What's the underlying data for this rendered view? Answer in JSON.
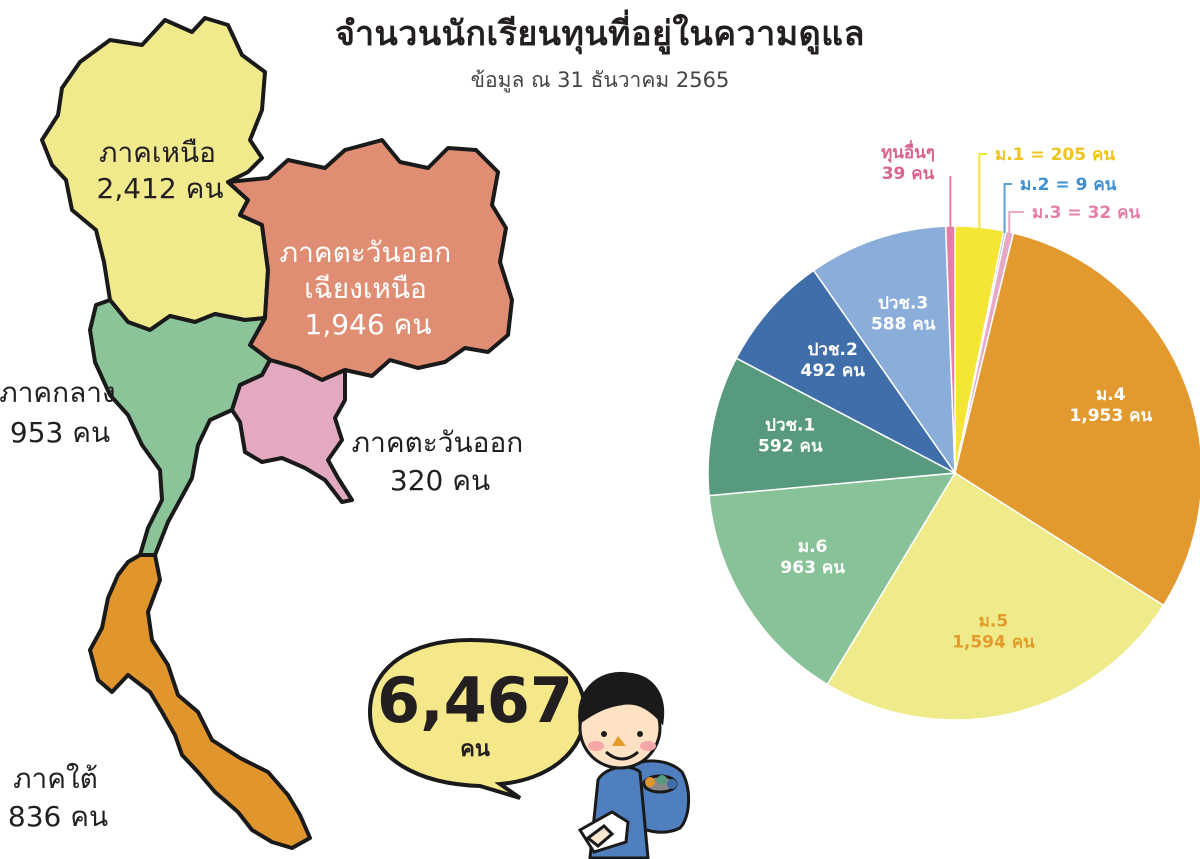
{
  "title": "จำนวนนักเรียนทุนที่อยู่ในความดูแล",
  "subtitle": "ข้อมูล ณ 31 ธันวาคม 2565",
  "unit": "คน",
  "total": "6,467",
  "regions": [
    {
      "name": "ภาคเหนือ",
      "count": "2,412",
      "color": "#f0ea8c"
    },
    {
      "name": "ภาคตะวันออกเฉียงเหนือ",
      "count": "1,946",
      "color": "#df8e73"
    },
    {
      "name": "ภาคกลาง",
      "count": "953",
      "color": "#8cc49a"
    },
    {
      "name": "ภาคตะวันออก",
      "count": "320",
      "color": "#e2a9c1"
    },
    {
      "name": "ภาคใต้",
      "count": "836",
      "color": "#e0962c"
    }
  ],
  "region_label_lines": {
    "north": [
      "ภาคเหนือ",
      "2,412 คน"
    ],
    "northeast": [
      "ภาคตะวันออก",
      "เฉียงเหนือ",
      "1,946 คน"
    ],
    "central": [
      "ภาคกลาง",
      "953 คน"
    ],
    "east": [
      "ภาคตะวันออก",
      "320 คน"
    ],
    "south": [
      "ภาคใต้",
      "836 คน"
    ]
  },
  "chart_data": {
    "type": "pie",
    "title": "",
    "slices": [
      {
        "label": "ม.1",
        "value": 205,
        "color": "#f5e636",
        "text_color": "#f0c419",
        "lines": [
          "ม.1 = 205 คน"
        ]
      },
      {
        "label": "ม.2",
        "value": 9,
        "color": "#5aa0d8",
        "text_color": "#3d8fd1",
        "lines": [
          "ม.2 = 9 คน"
        ]
      },
      {
        "label": "ม.3",
        "value": 32,
        "color": "#e6a8c3",
        "text_color": "#e37ea9",
        "lines": [
          "ม.3 = 32 คน"
        ]
      },
      {
        "label": "ม.4",
        "value": 1953,
        "color": "#e2992e",
        "text_color": "#ffffff",
        "lines": [
          "ม.4",
          "1,953 คน"
        ]
      },
      {
        "label": "ม.5",
        "value": 1594,
        "color": "#efeb8a",
        "text_color": "#e39b2a",
        "lines": [
          "ม.5",
          "1,594 คน"
        ]
      },
      {
        "label": "ม.6",
        "value": 963,
        "color": "#88c299",
        "text_color": "#ffffff",
        "lines": [
          "ม.6",
          "963 คน"
        ]
      },
      {
        "label": "ปวช.1",
        "value": 592,
        "color": "#579a7e",
        "text_color": "#ffffff",
        "lines": [
          "ปวช.1",
          "592 คน"
        ]
      },
      {
        "label": "ปวช.2",
        "value": 492,
        "color": "#3f6eaa",
        "text_color": "#ffffff",
        "lines": [
          "ปวช.2",
          "492 คน"
        ]
      },
      {
        "label": "ปวช.3",
        "value": 588,
        "color": "#8aaed9",
        "text_color": "#ffffff",
        "lines": [
          "ปวช.3",
          "588 คน"
        ]
      },
      {
        "label": "ทุนอื่นๆ",
        "value": 39,
        "color": "#e37ea9",
        "text_color": "#d9638f",
        "lines": [
          "ทุนอื่นๆ",
          "39 คน"
        ]
      }
    ]
  }
}
